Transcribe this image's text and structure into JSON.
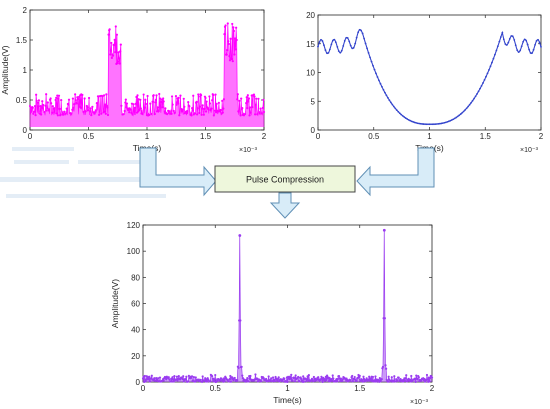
{
  "colors": {
    "magenta": "#ff00ff",
    "blue": "#3344cc",
    "purple": "#9a3cf0",
    "arrow_fill": "#d8ecf8",
    "arrow_stroke": "#5f8fb5",
    "box_fill": "#eef7dc",
    "box_stroke": "#444444",
    "axis": "#262626",
    "residual_text": "#cfe0f0"
  },
  "process_box": {
    "label": "Pulse Compression"
  },
  "chart_data": [
    {
      "id": "received",
      "type": "line",
      "style": "stem-markers",
      "color": "#ff00ff",
      "xlabel": "Time(s)",
      "ylabel": "Amplitude(V)",
      "x_exponent": "×10⁻³",
      "xlim": [
        0,
        2
      ],
      "ylim": [
        0,
        2
      ],
      "xticks": [
        0,
        0.5,
        1,
        1.5,
        2
      ],
      "yticks": [
        0,
        0.5,
        1,
        1.5,
        2
      ],
      "baseline_range": [
        0.05,
        0.6
      ],
      "pulses": [
        {
          "start": 0.67,
          "end": 0.78,
          "level": [
            1.1,
            1.75
          ]
        },
        {
          "start": 1.66,
          "end": 1.77,
          "level": [
            1.1,
            1.8
          ]
        }
      ]
    },
    {
      "id": "reference",
      "type": "line",
      "style": "line-markers",
      "color": "#3344cc",
      "xlabel": "Time(s)",
      "x_exponent": "×10⁻³",
      "xlim": [
        0,
        2
      ],
      "ylim": [
        0,
        20
      ],
      "xticks": [
        0,
        0.5,
        1,
        1.5,
        2
      ],
      "yticks": [
        0,
        5,
        10,
        15,
        20
      ],
      "envelope": {
        "plateau": 14.5,
        "peak": 16.8,
        "peak_x": [
          0.4,
          1.65
        ],
        "valley": 1.0,
        "valley_x": 1.0
      }
    },
    {
      "id": "compressed",
      "type": "line",
      "style": "stem-markers",
      "color": "#9a3cf0",
      "xlabel": "Time(s)",
      "ylabel": "Amplitude(V)",
      "x_exponent": "×10⁻³",
      "xlim": [
        0,
        2
      ],
      "ylim": [
        0,
        120
      ],
      "xticks": [
        0,
        0.5,
        1,
        1.5,
        2
      ],
      "yticks": [
        0,
        20,
        40,
        60,
        80,
        100,
        120
      ],
      "noise_range": [
        0,
        6
      ],
      "peaks": [
        {
          "x": 0.67,
          "y": 112
        },
        {
          "x": 1.67,
          "y": 116
        }
      ]
    }
  ]
}
